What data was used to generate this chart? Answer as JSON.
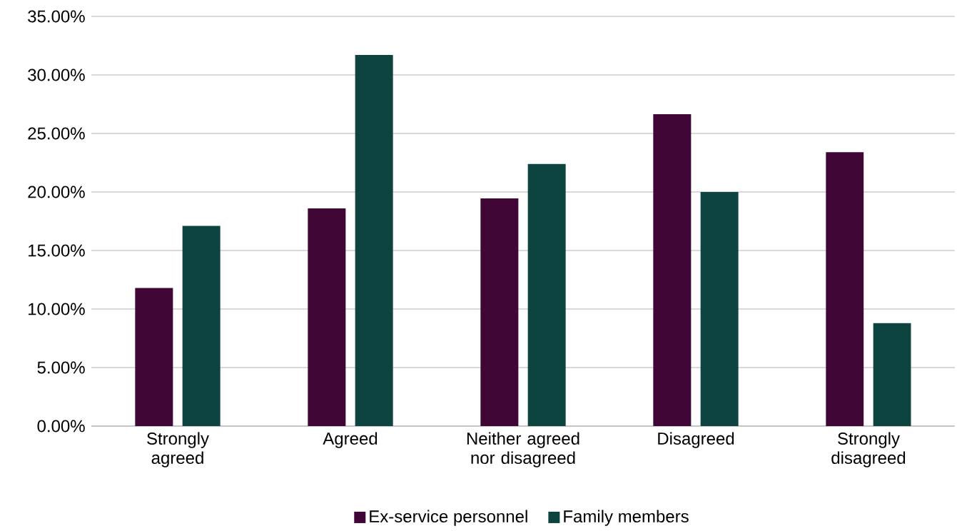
{
  "chart_data": {
    "type": "bar",
    "categories": [
      "Strongly agreed",
      "Agreed",
      "Neither agreed nor disagreed",
      "Disagreed",
      "Strongly disagreed"
    ],
    "series": [
      {
        "name": "Ex-service personnel",
        "color": "#3f0636",
        "values": [
          11.8,
          18.6,
          19.45,
          26.65,
          23.4
        ]
      },
      {
        "name": "Family members",
        "color": "#0d4440",
        "values": [
          17.1,
          31.7,
          22.4,
          20.0,
          8.8
        ]
      }
    ],
    "ylim": [
      0,
      35
    ],
    "yticks": [
      {
        "value": 0,
        "label": "0.00%"
      },
      {
        "value": 5,
        "label": "5.00%"
      },
      {
        "value": 10,
        "label": "10.00%"
      },
      {
        "value": 15,
        "label": "15.00%"
      },
      {
        "value": 20,
        "label": "20.00%"
      },
      {
        "value": 25,
        "label": "25.00%"
      },
      {
        "value": 30,
        "label": "30.00%"
      },
      {
        "value": 35,
        "label": "35.00%"
      }
    ],
    "grid": "y",
    "legend": "bottom"
  }
}
